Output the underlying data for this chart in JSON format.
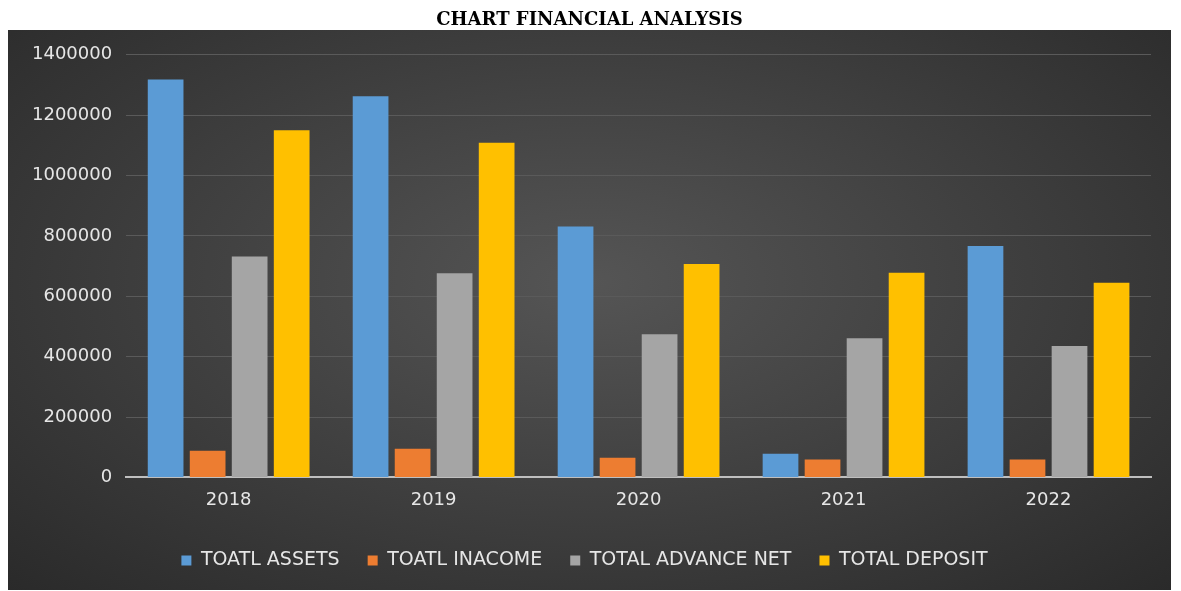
{
  "chart_data": {
    "type": "bar",
    "title": "CHART FINANCIAL ANALYSIS",
    "categories": [
      "2018",
      "2019",
      "2020",
      "2021",
      "2022"
    ],
    "series": [
      {
        "name": "TOATL ASSETS",
        "color": "#5b9bd5",
        "values": [
          1318000,
          1263000,
          831000,
          78000,
          767000
        ]
      },
      {
        "name": "TOATL INACOME",
        "color": "#ed7d31",
        "values": [
          88000,
          95000,
          65000,
          59000,
          59000
        ]
      },
      {
        "name": "TOTAL ADVANCE NET",
        "color": "#a5a5a5",
        "values": [
          732000,
          676000,
          474000,
          461000,
          435000
        ]
      },
      {
        "name": "TOTAL DEPOSIT",
        "color": "#ffc000",
        "values": [
          1150000,
          1109000,
          707000,
          678000,
          645000
        ]
      }
    ],
    "ylim": [
      0,
      1400000
    ],
    "yticks": [
      0,
      200000,
      400000,
      600000,
      800000,
      1000000,
      1200000,
      1400000
    ],
    "grid": "y",
    "legend": "bottom"
  }
}
